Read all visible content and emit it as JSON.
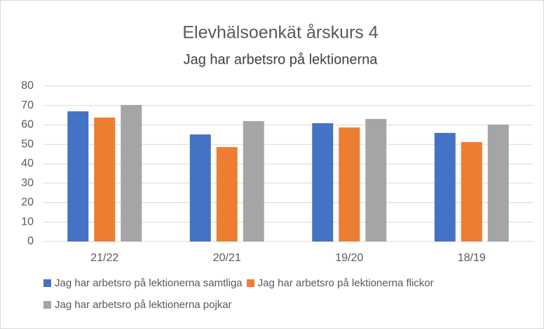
{
  "chart_data": {
    "type": "bar",
    "title": "Elevhälsoenkät årskurs 4",
    "subtitle": "Jag har arbetsro på lektionerna",
    "categories": [
      "21/22",
      "20/21",
      "19/20",
      "18/19"
    ],
    "series": [
      {
        "name": "Jag har arbetsro på lektionerna samtliga",
        "color": "#4472c4",
        "values": [
          67,
          55.1,
          60.9,
          55.9
        ]
      },
      {
        "name": "Jag har arbetsro på lektionerna flickor",
        "color": "#ed7d31",
        "values": [
          63.8,
          48.6,
          58.7,
          51.2
        ]
      },
      {
        "name": "Jag har arbetsro på lektionerna pojkar",
        "color": "#a5a5a5",
        "values": [
          70.3,
          62,
          63.1,
          60.2
        ]
      }
    ],
    "ylim": [
      0,
      80
    ],
    "yticks": [
      0,
      10,
      20,
      30,
      40,
      50,
      60,
      70,
      80
    ],
    "grid": true,
    "legend": "bottom"
  }
}
